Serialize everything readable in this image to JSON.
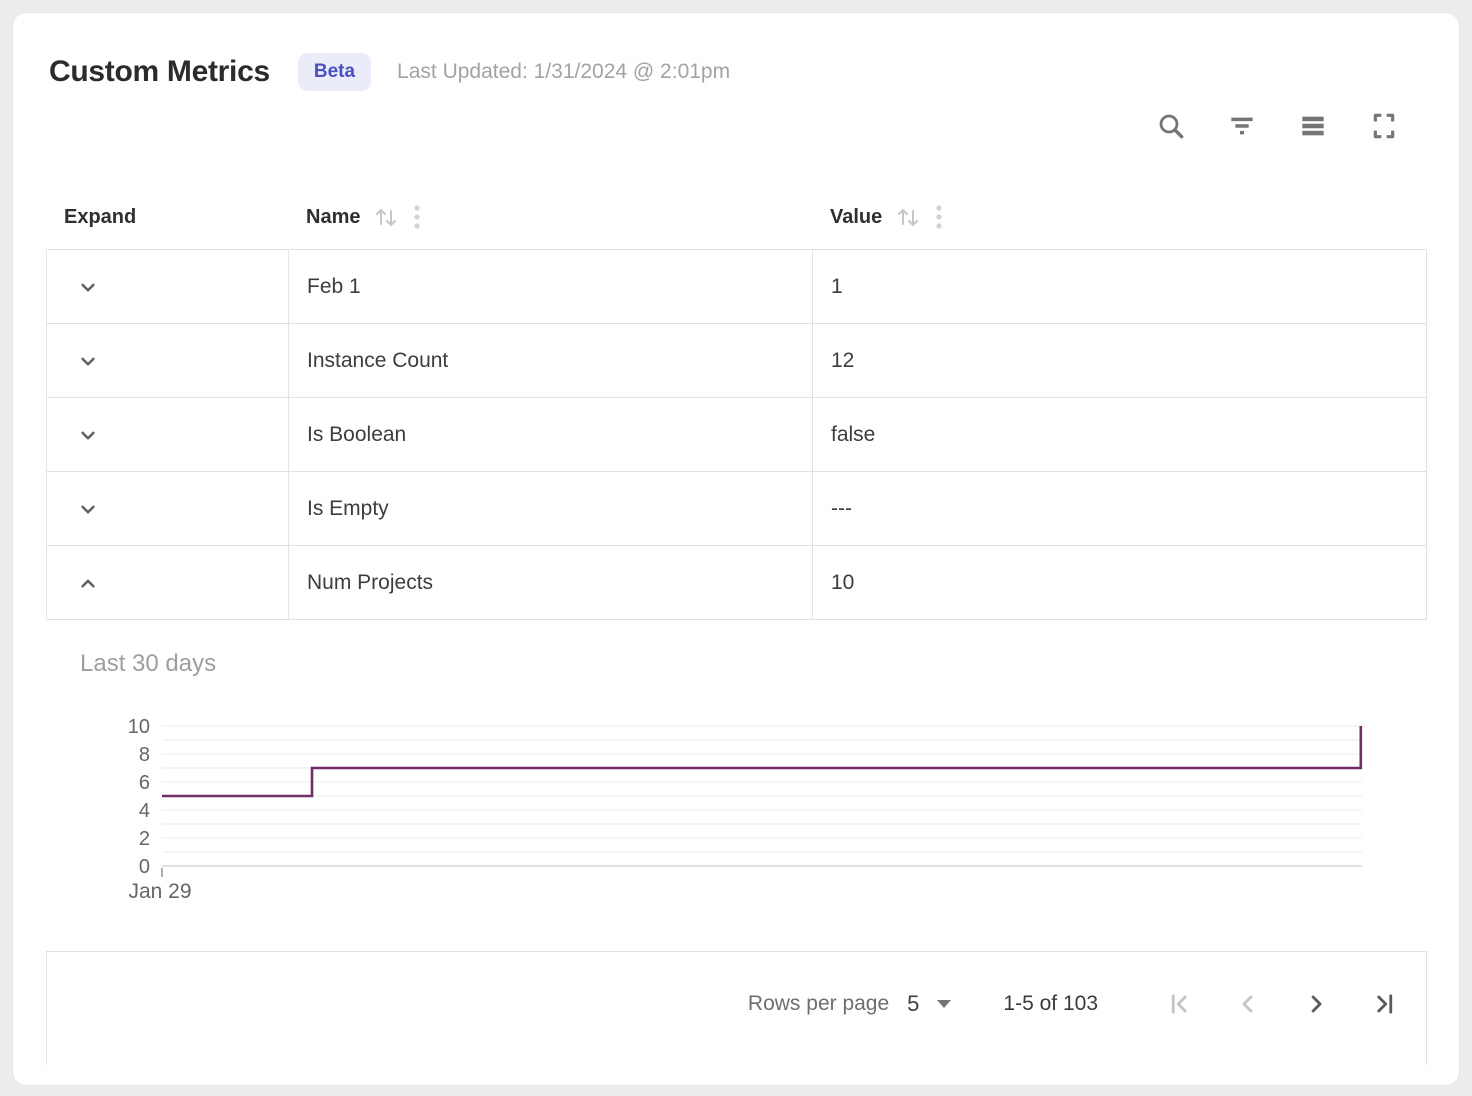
{
  "header": {
    "title": "Custom Metrics",
    "badge": "Beta",
    "last_updated": "Last Updated: 1/31/2024 @ 2:01pm"
  },
  "toolbar": {
    "icons": [
      "search",
      "filter",
      "density",
      "fullscreen"
    ]
  },
  "table": {
    "columns": [
      {
        "label": "Expand",
        "sortable": false
      },
      {
        "label": "Name",
        "sortable": true
      },
      {
        "label": "Value",
        "sortable": true
      }
    ],
    "rows": [
      {
        "name": "Feb 1",
        "value": "1",
        "expanded": false
      },
      {
        "name": "Instance Count",
        "value": "12",
        "expanded": false
      },
      {
        "name": "Is Boolean",
        "value": "false",
        "expanded": false
      },
      {
        "name": "Is Empty",
        "value": "---",
        "expanded": false
      },
      {
        "name": "Num Projects",
        "value": "10",
        "expanded": true
      }
    ]
  },
  "chart_data": {
    "type": "line",
    "step": "after",
    "title": "Last 30 days",
    "series": [
      {
        "name": "Num Projects",
        "points": [
          {
            "x_frac": 0.0,
            "y": 5
          },
          {
            "x_frac": 0.125,
            "y": 7
          },
          {
            "x_frac": 0.999,
            "y": 10
          }
        ]
      }
    ],
    "x_tick_labels": [
      "Jan 29"
    ],
    "y_ticks": [
      0,
      2,
      4,
      6,
      8,
      10
    ],
    "ylim": [
      0,
      10
    ],
    "grid": true,
    "legend": "none",
    "line_color": "#6f2e66"
  },
  "pagination": {
    "rows_per_page_label": "Rows per page",
    "rows_per_page_value": "5",
    "range_label": "1-5 of 103",
    "first_disabled": true,
    "prev_disabled": true,
    "next_disabled": false,
    "last_disabled": false
  },
  "colors": {
    "badge_bg": "#eaecfa",
    "badge_text": "#4a50c0",
    "chart_line": "#6f2e66",
    "border": "#e2e2e2",
    "muted_text": "#9e9e9e"
  }
}
